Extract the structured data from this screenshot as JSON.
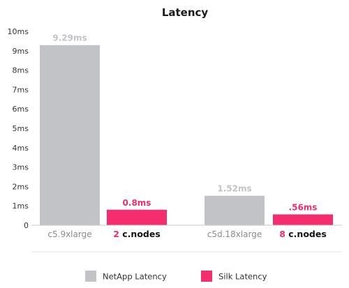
{
  "chart_data": {
    "type": "bar",
    "title": "Latency",
    "ylim": [
      0,
      10
    ],
    "yticks": [
      "0",
      "1ms",
      "2ms",
      "3ms",
      "4ms",
      "5ms",
      "6ms",
      "7ms",
      "8ms",
      "9ms",
      "10ms"
    ],
    "groups": [
      {
        "bars": [
          {
            "series": "NetApp Latency",
            "value": 9.29,
            "label": "9.29ms",
            "category": {
              "number": "",
              "text": "c5.9xlarge"
            }
          },
          {
            "series": "Silk Latency",
            "value": 0.8,
            "label": "0.8ms",
            "category": {
              "number": "2",
              "text": "c.nodes"
            }
          }
        ]
      },
      {
        "bars": [
          {
            "series": "NetApp Latency",
            "value": 1.52,
            "label": "1.52ms",
            "category": {
              "number": "",
              "text": "c5d.18xlarge"
            }
          },
          {
            "series": "Silk Latency",
            "value": 0.56,
            "label": ".56ms",
            "category": {
              "number": "8",
              "text": "c.nodes"
            }
          }
        ]
      }
    ],
    "series": [
      {
        "name": "NetApp Latency",
        "color": "#c2c3c7",
        "label_color": "#c2c3c7"
      },
      {
        "name": "Silk Latency",
        "color": "#f52d6e",
        "label_color": "#ee2d6f"
      }
    ],
    "legend_position": "bottom",
    "grid": false
  }
}
